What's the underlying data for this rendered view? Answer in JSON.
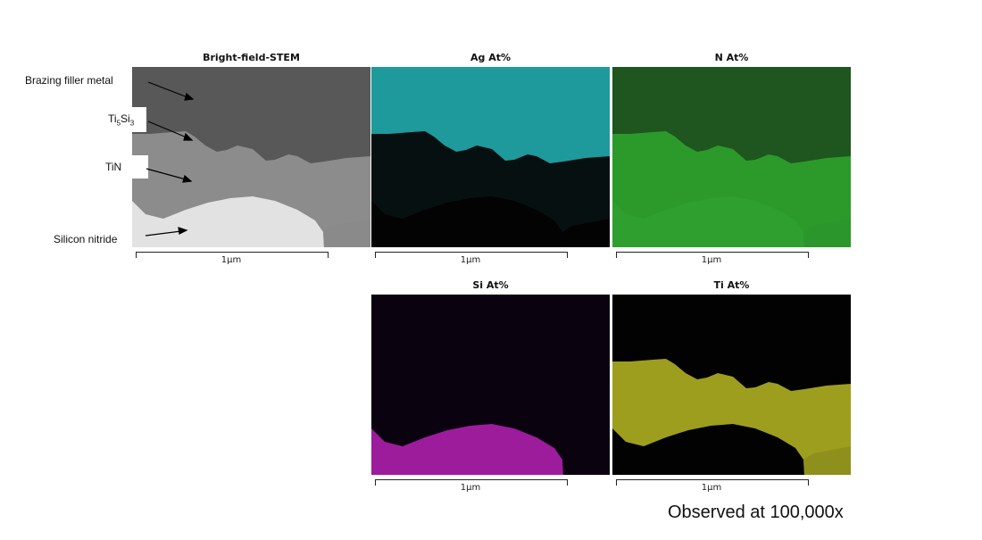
{
  "panels": [
    {
      "title": "Bright-field-STEM",
      "scale_label": "1μm",
      "colors": {
        "top": "#585858",
        "layer": "#8c8c8c",
        "bottom": "#e2e2e2",
        "right": "#8a8a8a"
      }
    },
    {
      "title": "Ag At%",
      "scale_label": "1μm",
      "colors": {
        "top": "#1f9a9c",
        "layer": "#071010",
        "bottom": "#030303",
        "right": "#030303"
      }
    },
    {
      "title": "N At%",
      "scale_label": "1μm",
      "colors": {
        "top": "#1f551f",
        "layer": "#2b9a2b",
        "bottom": "#2f9f2f",
        "right": "#2b962b"
      }
    },
    {
      "title": "Si At%",
      "scale_label": "1μm",
      "colors": {
        "top": "#0b0210",
        "layer": "#0b0210",
        "bottom": "#9c1c9c",
        "right": "#0b0210"
      }
    },
    {
      "title": "Ti At%",
      "scale_label": "1μm",
      "colors": {
        "top": "#020202",
        "layer": "#9e9e1e",
        "bottom": "#020202",
        "right": "#8f8f1e"
      }
    }
  ],
  "annotations": {
    "filler": "Brazing filler metal",
    "ti5si3": "Ti",
    "ti5si3_sub1": "5",
    "ti5si3_si": "Si",
    "ti5si3_sub2": "3",
    "tin": "TiN",
    "sin": "Silicon nitride"
  },
  "magnification_note": "Observed at 100,000x"
}
